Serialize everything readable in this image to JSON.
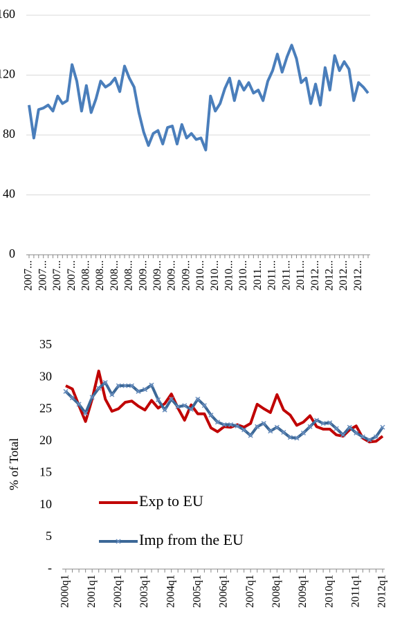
{
  "chart_data": [
    {
      "type": "line",
      "categories": [
        "2007...",
        null,
        null,
        "2007...",
        null,
        null,
        "2007...",
        null,
        null,
        "2007...",
        null,
        null,
        "2008...",
        null,
        null,
        "2008...",
        null,
        null,
        "2008...",
        null,
        null,
        "2008...",
        null,
        null,
        "2009...",
        null,
        null,
        "2009...",
        null,
        null,
        "2009...",
        null,
        null,
        "2009...",
        null,
        null,
        "2010...",
        null,
        null,
        "2010...",
        null,
        null,
        "2010...",
        null,
        null,
        "2010...",
        null,
        null,
        "2011...",
        null,
        null,
        "2011...",
        null,
        null,
        "2011...",
        null,
        null,
        "2011...",
        null,
        null,
        "2012...",
        null,
        null,
        "2012...",
        null,
        null,
        "2012...",
        null,
        null,
        "2012...",
        null,
        null
      ],
      "series": [
        {
          "color": "#4a7ebb",
          "values": [
            100,
            78,
            97,
            98,
            100,
            96,
            106,
            101,
            103,
            127,
            116,
            96,
            113,
            95,
            104,
            116,
            112,
            114,
            118,
            109,
            126,
            118,
            112,
            95,
            82,
            73,
            81,
            83,
            74,
            85,
            86,
            74,
            87,
            78,
            81,
            77,
            78,
            70,
            106,
            96,
            101,
            111,
            118,
            103,
            116,
            110,
            115,
            108,
            110,
            103,
            116,
            123,
            134,
            122,
            132,
            140,
            131,
            115,
            118,
            101,
            114,
            100,
            125,
            110,
            133,
            123,
            129,
            124,
            103,
            115,
            112,
            108
          ]
        }
      ],
      "ylim": [
        0,
        160
      ],
      "yticks": [
        0,
        40,
        80,
        120,
        160
      ],
      "grid": true
    },
    {
      "type": "line",
      "ylabel": "% of Total",
      "categories": [
        "2000q1",
        null,
        null,
        null,
        "2001q1",
        null,
        null,
        null,
        "2002q1",
        null,
        null,
        null,
        "2003q1",
        null,
        null,
        null,
        "2004q1",
        null,
        null,
        null,
        "2005q1",
        null,
        null,
        null,
        "2006q1",
        null,
        null,
        null,
        "2007q1",
        null,
        null,
        null,
        "2008q1",
        null,
        null,
        null,
        "2009q1",
        null,
        null,
        null,
        "2010q1",
        null,
        null,
        null,
        "2011q1",
        null,
        null,
        null,
        "2012q1"
      ],
      "series": [
        {
          "name": "Exp to EU",
          "color": "#c00000",
          "values": [
            28.7,
            28.2,
            25.6,
            23.1,
            26.6,
            31.0,
            26.6,
            24.7,
            25.1,
            26.1,
            26.3,
            25.5,
            24.9,
            26.4,
            25.2,
            25.9,
            27.4,
            25.2,
            23.3,
            25.7,
            24.3,
            24.3,
            22.1,
            21.5,
            22.3,
            22.2,
            22.6,
            22.2,
            22.8,
            25.8,
            25.1,
            24.5,
            27.3,
            24.9,
            24.1,
            22.5,
            23.0,
            24.0,
            22.3,
            21.9,
            21.9,
            21.0,
            20.8,
            21.8,
            22.4,
            20.5,
            19.9,
            20.0,
            20.8
          ]
        },
        {
          "name": "Imp from the EU",
          "color": "#3c6897",
          "marker": "x",
          "values": [
            27.8,
            26.8,
            25.8,
            24.4,
            26.9,
            28.3,
            29.2,
            27.3,
            28.7,
            28.7,
            28.7,
            27.8,
            28.1,
            28.8,
            26.5,
            24.9,
            26.6,
            25.4,
            25.6,
            25.0,
            26.6,
            25.6,
            24.1,
            23.0,
            22.6,
            22.6,
            22.4,
            21.8,
            20.9,
            22.3,
            22.8,
            21.6,
            22.2,
            21.4,
            20.6,
            20.5,
            21.3,
            22.3,
            23.3,
            22.8,
            22.9,
            22.0,
            21.0,
            22.2,
            21.3,
            20.7,
            20.2,
            20.7,
            22.2
          ]
        }
      ],
      "ylim": [
        0,
        35
      ],
      "yticks": [
        {
          "value": 0,
          "label": "-"
        },
        5,
        10,
        15,
        20,
        25,
        30,
        35
      ],
      "grid": false,
      "legend": "lower left"
    }
  ]
}
